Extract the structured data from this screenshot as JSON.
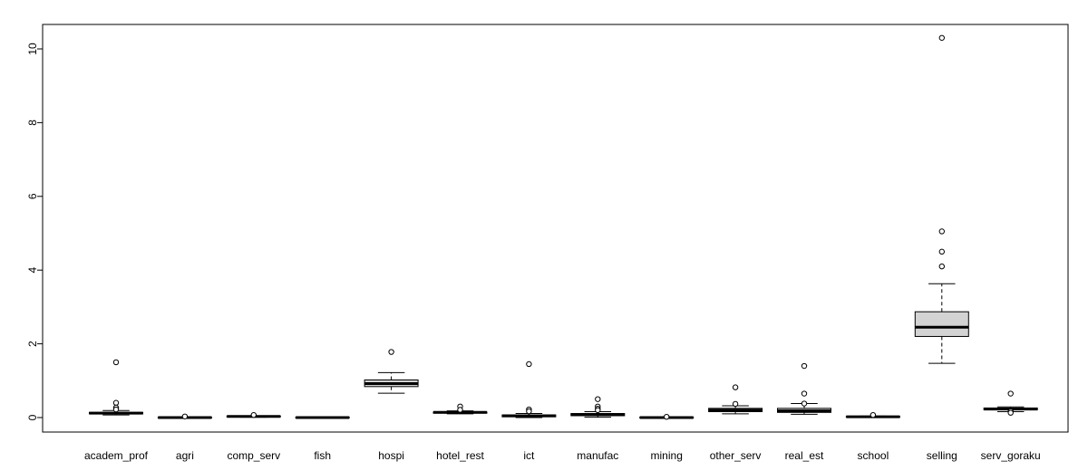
{
  "chart_data": {
    "type": "boxplot",
    "title": "",
    "xlabel": "",
    "ylabel": "",
    "ylim": [
      0,
      10.5
    ],
    "yticks": [
      "0",
      "2",
      "4",
      "6",
      "8",
      "10"
    ],
    "grid": false,
    "legend": "none",
    "box_fill": "#d3d3d3",
    "categories": [
      "academ_prof",
      "agri",
      "comp_serv",
      "fish",
      "hospi",
      "hotel_rest",
      "ict",
      "manufac",
      "mining",
      "other_serv",
      "real_est",
      "school",
      "selling",
      "serv_goraku"
    ],
    "boxes": [
      {
        "whisker_low": 0.07,
        "q1": 0.1,
        "median": 0.12,
        "q3": 0.14,
        "whisker_high": 0.19,
        "outliers": [
          1.5,
          0.4,
          0.27,
          0.22
        ]
      },
      {
        "whisker_low": 0.0,
        "q1": 0.0,
        "median": 0.0,
        "q3": 0.01,
        "whisker_high": 0.02,
        "outliers": [
          0.03
        ]
      },
      {
        "whisker_low": 0.01,
        "q1": 0.02,
        "median": 0.03,
        "q3": 0.04,
        "whisker_high": 0.05,
        "outliers": [
          0.07
        ]
      },
      {
        "whisker_low": 0.0,
        "q1": 0.0,
        "median": 0.0,
        "q3": 0.01,
        "whisker_high": 0.01,
        "outliers": []
      },
      {
        "whisker_low": 0.66,
        "q1": 0.84,
        "median": 0.92,
        "q3": 1.02,
        "whisker_high": 1.22,
        "outliers": [
          1.78
        ]
      },
      {
        "whisker_low": 0.1,
        "q1": 0.12,
        "median": 0.14,
        "q3": 0.15,
        "whisker_high": 0.18,
        "outliers": [
          0.3,
          0.21
        ]
      },
      {
        "whisker_low": 0.0,
        "q1": 0.02,
        "median": 0.05,
        "q3": 0.07,
        "whisker_high": 0.11,
        "outliers": [
          1.45,
          0.22,
          0.17
        ]
      },
      {
        "whisker_low": 0.01,
        "q1": 0.05,
        "median": 0.08,
        "q3": 0.11,
        "whisker_high": 0.16,
        "outliers": [
          0.5,
          0.3,
          0.24,
          0.2
        ]
      },
      {
        "whisker_low": 0.0,
        "q1": 0.0,
        "median": 0.0,
        "q3": 0.01,
        "whisker_high": 0.01,
        "outliers": [
          0.02
        ]
      },
      {
        "whisker_low": 0.1,
        "q1": 0.16,
        "median": 0.2,
        "q3": 0.25,
        "whisker_high": 0.32,
        "outliers": [
          0.82,
          0.37
        ]
      },
      {
        "whisker_low": 0.09,
        "q1": 0.14,
        "median": 0.18,
        "q3": 0.25,
        "whisker_high": 0.38,
        "outliers": [
          1.4,
          0.65,
          0.38
        ]
      },
      {
        "whisker_low": 0.0,
        "q1": 0.01,
        "median": 0.02,
        "q3": 0.03,
        "whisker_high": 0.04,
        "outliers": [
          0.07
        ]
      },
      {
        "whisker_low": 1.47,
        "q1": 2.2,
        "median": 2.45,
        "q3": 2.87,
        "whisker_high": 3.63,
        "outliers": [
          10.3,
          5.05,
          4.5,
          4.1
        ]
      },
      {
        "whisker_low": 0.16,
        "q1": 0.21,
        "median": 0.23,
        "q3": 0.26,
        "whisker_high": 0.29,
        "outliers": [
          0.65,
          0.17,
          0.13
        ]
      }
    ]
  }
}
